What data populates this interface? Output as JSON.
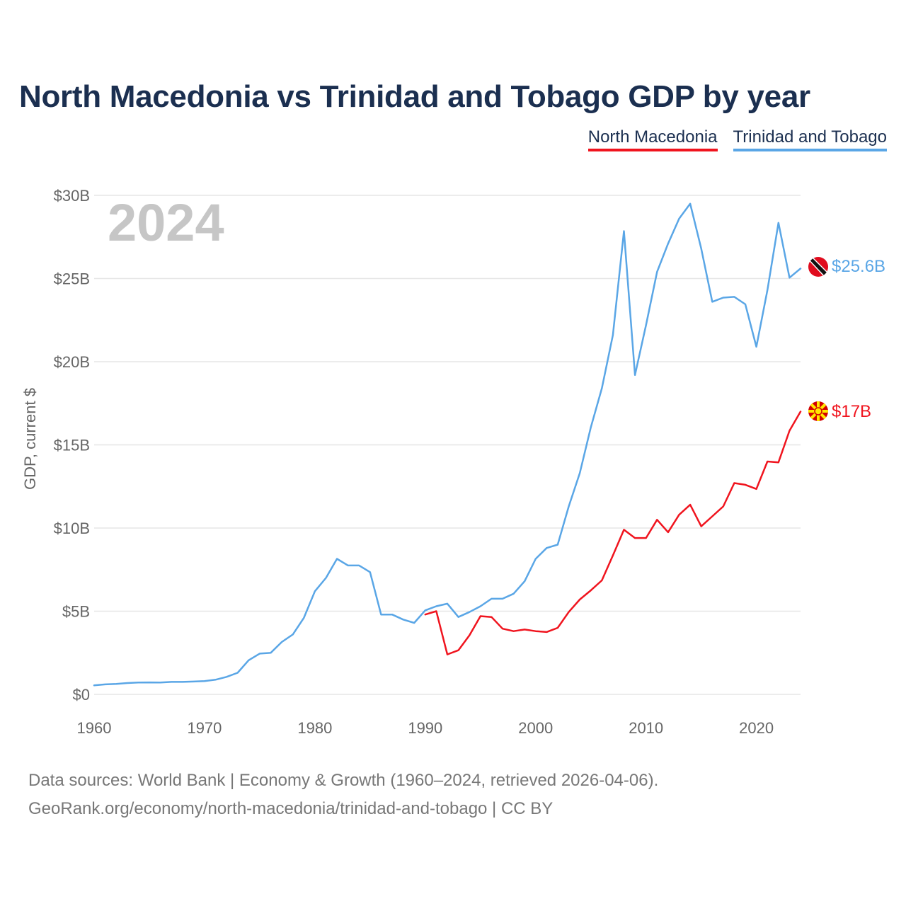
{
  "title": "North Macedonia vs Trinidad and Tobago GDP by year",
  "legend": [
    {
      "label": "North Macedonia",
      "color": "#f0141e"
    },
    {
      "label": "Trinidad and Tobago",
      "color": "#5aa6e6"
    }
  ],
  "year_watermark": "2024",
  "footer": {
    "line1": "Data sources: World Bank | Economy & Growth (1960–2024, retrieved 2026-04-06).",
    "line2": "GeoRank.org/economy/north-macedonia/trinidad-and-tobago | CC BY"
  },
  "chart_data": {
    "type": "line",
    "title": "North Macedonia vs Trinidad and Tobago GDP by year",
    "xlabel": "",
    "ylabel": "GDP, current $",
    "xlim": [
      1960,
      2024
    ],
    "ylim": [
      0,
      30
    ],
    "x_ticks": [
      1960,
      1970,
      1980,
      1990,
      2000,
      2010,
      2020
    ],
    "x_tick_labels": [
      "1960",
      "1970",
      "1980",
      "1990",
      "2000",
      "2010",
      "2020"
    ],
    "y_ticks": [
      0,
      5,
      10,
      15,
      20,
      25,
      30
    ],
    "y_tick_labels": [
      "$0",
      "$5B",
      "$10B",
      "$15B",
      "$20B",
      "$25B",
      "$30B"
    ],
    "grid": true,
    "legend_position": "top-right",
    "series": [
      {
        "name": "North Macedonia",
        "color": "#f0141e",
        "end_label": "$17B",
        "flag_icon": "north-macedonia-flag-icon",
        "x": [
          1990,
          1991,
          1992,
          1993,
          1994,
          1995,
          1996,
          1997,
          1998,
          1999,
          2000,
          2001,
          2002,
          2003,
          2004,
          2005,
          2006,
          2007,
          2008,
          2009,
          2010,
          2011,
          2012,
          2013,
          2014,
          2015,
          2016,
          2017,
          2018,
          2019,
          2020,
          2021,
          2022,
          2023,
          2024
        ],
        "values": [
          4.8,
          5.0,
          2.4,
          2.65,
          3.55,
          4.7,
          4.65,
          3.95,
          3.8,
          3.9,
          3.8,
          3.75,
          4.0,
          4.95,
          5.7,
          6.25,
          6.85,
          8.35,
          9.9,
          9.4,
          9.4,
          10.5,
          9.75,
          10.8,
          11.4,
          10.1,
          10.7,
          11.3,
          12.7,
          12.6,
          12.35,
          14.0,
          13.95,
          15.85,
          17.0
        ]
      },
      {
        "name": "Trinidad and Tobago",
        "color": "#5aa6e6",
        "end_label": "$25.6B",
        "flag_icon": "trinidad-and-tobago-flag-icon",
        "x": [
          1960,
          1961,
          1962,
          1963,
          1964,
          1965,
          1966,
          1967,
          1968,
          1969,
          1970,
          1971,
          1972,
          1973,
          1974,
          1975,
          1976,
          1977,
          1978,
          1979,
          1980,
          1981,
          1982,
          1983,
          1984,
          1985,
          1986,
          1987,
          1988,
          1989,
          1990,
          1991,
          1992,
          1993,
          1994,
          1995,
          1996,
          1997,
          1998,
          1999,
          2000,
          2001,
          2002,
          2003,
          2004,
          2005,
          2006,
          2007,
          2008,
          2009,
          2010,
          2011,
          2012,
          2013,
          2014,
          2015,
          2016,
          2017,
          2018,
          2019,
          2020,
          2021,
          2022,
          2023,
          2024
        ],
        "values": [
          0.54,
          0.6,
          0.63,
          0.68,
          0.71,
          0.72,
          0.71,
          0.75,
          0.75,
          0.77,
          0.8,
          0.88,
          1.05,
          1.3,
          2.05,
          2.45,
          2.5,
          3.15,
          3.6,
          4.6,
          6.2,
          7.0,
          8.15,
          7.75,
          7.75,
          7.35,
          4.8,
          4.8,
          4.5,
          4.3,
          5.05,
          5.3,
          5.45,
          4.65,
          4.95,
          5.3,
          5.75,
          5.75,
          6.05,
          6.8,
          8.15,
          8.8,
          9.0,
          11.3,
          13.3,
          16.05,
          18.4,
          21.6,
          27.85,
          19.2,
          22.2,
          25.4,
          27.1,
          28.6,
          29.5,
          26.8,
          23.6,
          23.85,
          23.9,
          23.45,
          20.9,
          24.3,
          28.35,
          25.05,
          25.6
        ]
      }
    ]
  }
}
